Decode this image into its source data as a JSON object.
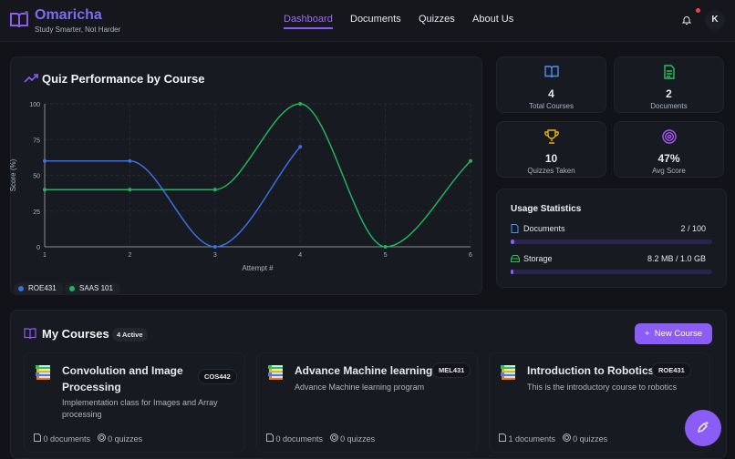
{
  "app": {
    "name": "Omaricha",
    "tagline": "Study Smarter, Not Harder",
    "avatar_initial": "K"
  },
  "nav": [
    {
      "label": "Dashboard",
      "active": true
    },
    {
      "label": "Documents"
    },
    {
      "label": "Quizzes"
    },
    {
      "label": "About Us"
    }
  ],
  "chart_card": {
    "title": "Quiz Performance by Course"
  },
  "chart_data": {
    "type": "line",
    "title": "Quiz Performance by Course",
    "xlabel": "Attempt #",
    "ylabel": "Score (%)",
    "x": [
      1,
      2,
      3,
      4,
      5,
      6
    ],
    "xlim": [
      1,
      6
    ],
    "ylim": [
      0,
      100
    ],
    "yticks": [
      0,
      25,
      50,
      75,
      100
    ],
    "grid": true,
    "legend": "bottom-left",
    "smooth": true,
    "series": [
      {
        "name": "ROE431",
        "color": "#3b6fe0",
        "x": [
          1,
          2,
          3,
          4
        ],
        "values": [
          60,
          60,
          0,
          70
        ]
      },
      {
        "name": "SAAS 101",
        "color": "#22b45a",
        "x": [
          1,
          2,
          3,
          4,
          5,
          6
        ],
        "values": [
          40,
          40,
          40,
          100,
          0,
          60
        ]
      }
    ]
  },
  "stats": [
    {
      "value": "4",
      "label": "Total Courses",
      "icon": "book-open-icon",
      "color": "#4f8ff7"
    },
    {
      "value": "2",
      "label": "Documents",
      "icon": "file-text-icon",
      "color": "#22c55e"
    },
    {
      "value": "10",
      "label": "Quizzes Taken",
      "icon": "trophy-icon",
      "color": "#eab308"
    },
    {
      "value": "47%",
      "label": "Avg Score",
      "icon": "target-icon",
      "color": "#a855f7"
    }
  ],
  "usage": {
    "title": "Usage Statistics",
    "items": [
      {
        "label": "Documents",
        "value": "2 / 100",
        "percent": 2
      },
      {
        "label": "Storage",
        "value": "8.2 MB / 1.0 GB",
        "percent": 0.8
      }
    ]
  },
  "courses": {
    "title": "My Courses",
    "badge": "4 Active",
    "new_label": "New Course",
    "items": [
      {
        "title": "Convolution and Image Processing",
        "code": "COS442",
        "description": "Implementation class for Images and Array processing",
        "documents": "0 documents",
        "quizzes": "0 quizzes"
      },
      {
        "title": "Advance Machine learning",
        "code": "MEL431",
        "description": "Advance Machine learning program",
        "documents": "0 documents",
        "quizzes": "0 quizzes"
      },
      {
        "title": "Introduction to Robotics",
        "code": "ROE431",
        "description": "This is the introductory course to robotics",
        "documents": "1 documents",
        "quizzes": "0 quizzes"
      }
    ]
  }
}
